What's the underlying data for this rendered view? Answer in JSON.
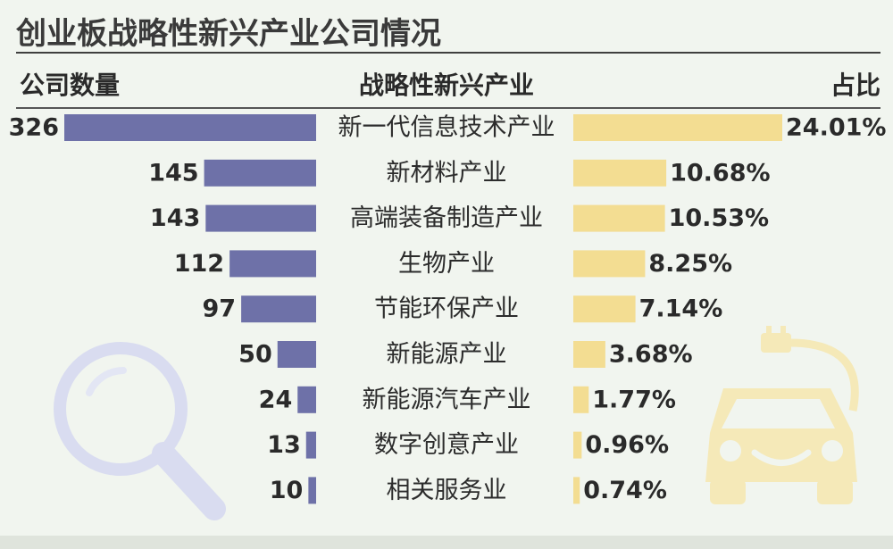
{
  "title": "创业板战略性新兴产业公司情况",
  "headers": {
    "left": "公司数量",
    "middle": "战略性新兴产业",
    "right": "占比"
  },
  "colors": {
    "count_bar": "#6e71a8",
    "share_bar": "#f3dd92",
    "decoration_blue": "#d9dcf0",
    "decoration_yellow": "#f5e9b8"
  },
  "icons": [
    "magnifier-icon",
    "electric-car-icon"
  ],
  "chart_data": {
    "type": "bar",
    "categories": [
      "新一代信息技术产业",
      "新材料产业",
      "高端装备制造产业",
      "生物产业",
      "节能环保产业",
      "新能源产业",
      "新能源汽车产业",
      "数字创意产业",
      "相关服务业"
    ],
    "series": [
      {
        "name": "公司数量",
        "values": [
          326,
          145,
          143,
          112,
          97,
          50,
          24,
          13,
          10
        ]
      },
      {
        "name": "占比",
        "values": [
          24.01,
          10.68,
          10.53,
          8.25,
          7.14,
          3.68,
          1.77,
          0.96,
          0.74
        ],
        "labels": [
          "24.01%",
          "10.68%",
          "10.53%",
          "8.25%",
          "7.14%",
          "3.68%",
          "1.77%",
          "0.96%",
          "0.74%"
        ]
      }
    ],
    "count_labels": [
      "326",
      "145",
      "143",
      "112",
      "97",
      "50",
      "24",
      "13",
      "10"
    ]
  }
}
